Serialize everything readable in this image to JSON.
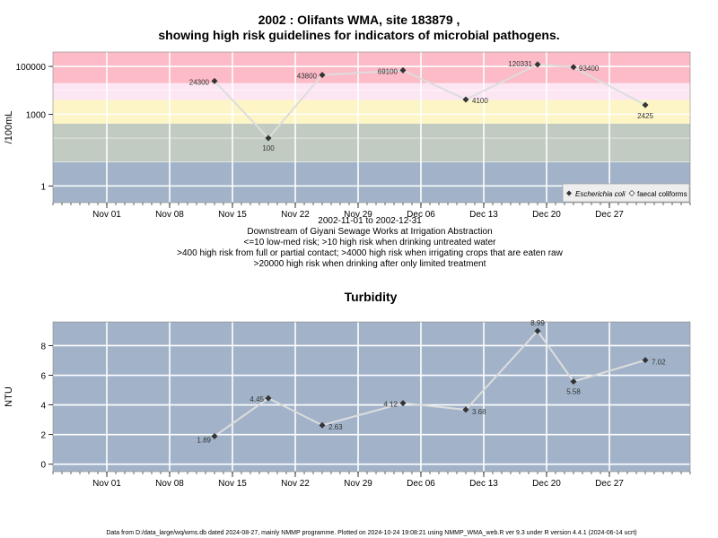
{
  "chart_data": [
    {
      "type": "line",
      "title": "2002 : Olifants WMA, site 183879 ,",
      "title2": "showing high risk guidelines for indicators of microbial pathogens.",
      "ylabel": "/100mL",
      "yscale": "log10",
      "ylim": [
        0.2,
        400000
      ],
      "x_range": [
        "2002-10-26",
        "2003-01-05"
      ],
      "x_ticks": [
        "Nov 01",
        "Nov 08",
        "Nov 15",
        "Nov 22",
        "Nov 29",
        "Dec 06",
        "Dec 13",
        "Dec 20",
        "Dec 27"
      ],
      "x_tick_dates": [
        "2002-11-01",
        "2002-11-08",
        "2002-11-15",
        "2002-11-22",
        "2002-11-29",
        "2002-12-06",
        "2002-12-13",
        "2002-12-20",
        "2002-12-27"
      ],
      "y_ticks": [
        "1",
        "1000",
        "100000"
      ],
      "y_tick_values": [
        1,
        1000,
        100000
      ],
      "bands": [
        {
          "from": 0.2,
          "to": 10,
          "color": "#a2b3c9"
        },
        {
          "from": 10,
          "to": 400,
          "color": "#c1cbc1"
        },
        {
          "from": 400,
          "to": 4000,
          "color": "#fdf5c5"
        },
        {
          "from": 4000,
          "to": 20000,
          "color": "#fce6f4"
        },
        {
          "from": 20000,
          "to": 400000,
          "color": "#fcbbc7"
        }
      ],
      "grid": true,
      "legend_position": "bottom-right",
      "legend": [
        "Escherichia coli",
        "faecal coliforms"
      ],
      "series": [
        {
          "name": "Escherichia coli",
          "color": "#333333",
          "points": [
            {
              "date": "2002-11-13",
              "value": 24300,
              "label": "24300"
            },
            {
              "date": "2002-11-19",
              "value": 100,
              "label": "100"
            },
            {
              "date": "2002-11-25",
              "value": 43800,
              "label": "43800"
            },
            {
              "date": "2002-12-04",
              "value": 69100,
              "label": "69100"
            },
            {
              "date": "2002-12-11",
              "value": 4100,
              "label": "4100"
            },
            {
              "date": "2002-12-19",
              "value": 120331,
              "label": "120331"
            },
            {
              "date": "2002-12-23",
              "value": 93400,
              "label": "93400"
            },
            {
              "date": "2002-12-31",
              "value": 2425,
              "label": "2425"
            }
          ]
        }
      ],
      "caption_lines": [
        "2002-11-01 to 2002-12-31",
        "Downstream of Giyani Sewage Works at Irrigation Abstraction",
        "<=10 low-med risk; >10 high risk when drinking untreated water",
        ">400 high risk from full or partial contact; >4000 high risk when irrigating crops that are eaten raw",
        ">20000 high risk when drinking after only limited treatment"
      ]
    },
    {
      "type": "line",
      "title": "Turbidity",
      "ylabel": "NTU",
      "ylim": [
        -0.5,
        9.6
      ],
      "x_range": [
        "2002-10-26",
        "2003-01-05"
      ],
      "x_ticks": [
        "Nov 01",
        "Nov 08",
        "Nov 15",
        "Nov 22",
        "Nov 29",
        "Dec 06",
        "Dec 13",
        "Dec 20",
        "Dec 27"
      ],
      "x_tick_dates": [
        "2002-11-01",
        "2002-11-08",
        "2002-11-15",
        "2002-11-22",
        "2002-11-29",
        "2002-12-06",
        "2002-12-13",
        "2002-12-20",
        "2002-12-27"
      ],
      "y_ticks": [
        "0",
        "2",
        "4",
        "6",
        "8"
      ],
      "y_tick_values": [
        0,
        2,
        4,
        6,
        8
      ],
      "background": "#a2b3c9",
      "grid": true,
      "series": [
        {
          "name": "",
          "color": "#333333",
          "points": [
            {
              "date": "2002-11-13",
              "value": 1.89,
              "label": "1.89"
            },
            {
              "date": "2002-11-19",
              "value": 4.45,
              "label": "4.45"
            },
            {
              "date": "2002-11-25",
              "value": 2.63,
              "label": "2.63"
            },
            {
              "date": "2002-12-04",
              "value": 4.12,
              "label": "4.12"
            },
            {
              "date": "2002-12-11",
              "value": 3.68,
              "label": "3.68"
            },
            {
              "date": "2002-12-19",
              "value": 8.99,
              "label": "8.99"
            },
            {
              "date": "2002-12-23",
              "value": 5.58,
              "label": "5.58"
            },
            {
              "date": "2002-12-31",
              "value": 7.02,
              "label": "7.02"
            }
          ]
        }
      ]
    }
  ],
  "footer": "Data from D:/data_large/wq/wms.db dated 2024-08-27, mainly NMMP programme. Plotted on 2024-10-24 19:08:21 using NMMP_WMA_web.R ver 9.3 under R version 4.4.1 (2024-06-14 ucrt)"
}
